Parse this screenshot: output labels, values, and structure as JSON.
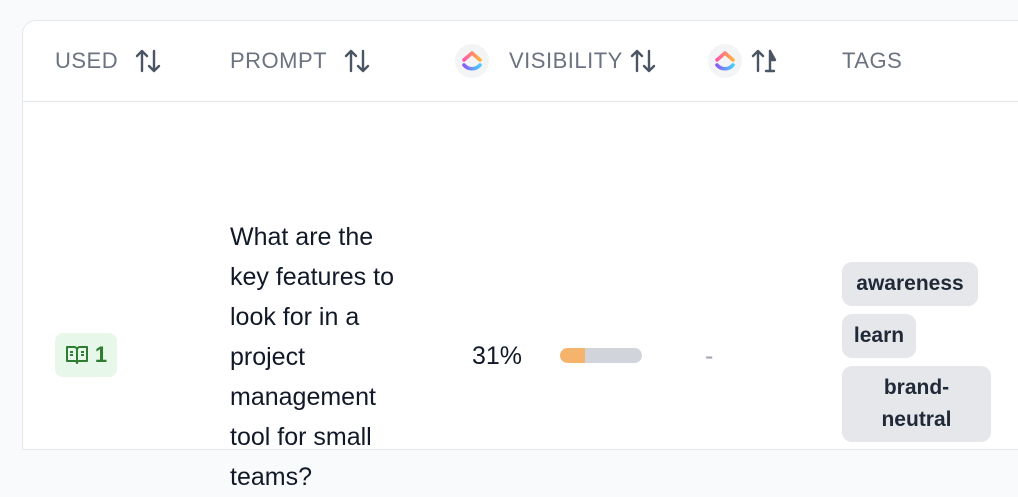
{
  "table": {
    "columns": {
      "used": "USED",
      "prompt": "PROMPT",
      "visibility": "VISIBILITY",
      "tags": "TAGS"
    },
    "rows": [
      {
        "used_count": "1",
        "prompt": "What are the key features to look for in a project management tool for small teams?",
        "visibility_text": "31%",
        "visibility_fraction": 0.31,
        "position": "-",
        "tags": [
          "awareness",
          "learn",
          "brand-neutral"
        ]
      }
    ]
  },
  "icons": {
    "sort": "sort-arrows-icon",
    "brand": "clickup-logo-icon",
    "used": "book-open-icon"
  },
  "colors": {
    "bar_fill": "#f6b36b",
    "bar_track": "#d1d5db",
    "used_badge_bg": "#e7f8ea",
    "used_badge_text": "#2e7d32",
    "tag_bg": "#e5e7eb"
  }
}
